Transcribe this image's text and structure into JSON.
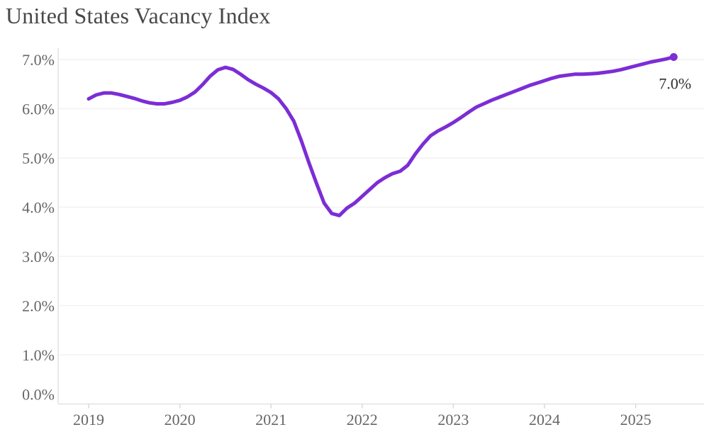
{
  "header": {
    "title": "United States Vacancy Index"
  },
  "colors": {
    "line": "#7c2dd6",
    "title": "#484848",
    "tick_label": "#666666",
    "annotation": "#2d2d2d",
    "gridline": "#f2f2f2",
    "axis_line": "#e2e2e2",
    "tick_mark": "#d9d9d9",
    "background": "#ffffff"
  },
  "chart_data": {
    "type": "line",
    "title": "United States Vacancy Index",
    "xlabel": "",
    "ylabel": "",
    "x_unit": "decimal years (monthly points, Jan 2019 - Jun 2025)",
    "ylim": [
      0.0,
      7.0
    ],
    "xlim_ticks": [
      2019,
      2025
    ],
    "grid": "horizontal",
    "legend": "none",
    "y_ticks": [
      {
        "value": 7,
        "label": "7.0%"
      },
      {
        "value": 6,
        "label": "6.0%"
      },
      {
        "value": 5,
        "label": "5.0%"
      },
      {
        "value": 4,
        "label": "4.0%"
      },
      {
        "value": 3,
        "label": "3.0%"
      },
      {
        "value": 2,
        "label": "2.0%"
      },
      {
        "value": 1,
        "label": "1.0%"
      },
      {
        "value": 0,
        "label": "0.0%"
      }
    ],
    "x_ticks": [
      {
        "value": 2019,
        "label": "2019"
      },
      {
        "value": 2020,
        "label": "2020"
      },
      {
        "value": 2021,
        "label": "2021"
      },
      {
        "value": 2022,
        "label": "2022"
      },
      {
        "value": 2023,
        "label": "2023"
      },
      {
        "value": 2024,
        "label": "2024"
      },
      {
        "value": 2025,
        "label": "2025"
      }
    ],
    "series": [
      {
        "name": "United States Vacancy Index",
        "x": [
          2019.0,
          2019.083,
          2019.167,
          2019.25,
          2019.333,
          2019.417,
          2019.5,
          2019.583,
          2019.667,
          2019.75,
          2019.833,
          2019.917,
          2020.0,
          2020.083,
          2020.167,
          2020.25,
          2020.333,
          2020.417,
          2020.5,
          2020.583,
          2020.667,
          2020.75,
          2020.833,
          2020.917,
          2021.0,
          2021.083,
          2021.167,
          2021.25,
          2021.333,
          2021.417,
          2021.5,
          2021.583,
          2021.667,
          2021.75,
          2021.833,
          2021.917,
          2022.0,
          2022.083,
          2022.167,
          2022.25,
          2022.333,
          2022.417,
          2022.5,
          2022.583,
          2022.667,
          2022.75,
          2022.833,
          2022.917,
          2023.0,
          2023.083,
          2023.167,
          2023.25,
          2023.333,
          2023.417,
          2023.5,
          2023.583,
          2023.667,
          2023.75,
          2023.833,
          2023.917,
          2024.0,
          2024.083,
          2024.167,
          2024.25,
          2024.333,
          2024.417,
          2024.5,
          2024.583,
          2024.667,
          2024.75,
          2024.833,
          2024.917,
          2025.0,
          2025.083,
          2025.167,
          2025.25,
          2025.333,
          2025.417
        ],
        "values": [
          6.2,
          6.28,
          6.32,
          6.32,
          6.29,
          6.25,
          6.21,
          6.16,
          6.12,
          6.1,
          6.1,
          6.13,
          6.17,
          6.24,
          6.34,
          6.49,
          6.66,
          6.79,
          6.84,
          6.8,
          6.7,
          6.59,
          6.5,
          6.42,
          6.33,
          6.2,
          6.0,
          5.75,
          5.35,
          4.9,
          4.48,
          4.08,
          3.87,
          3.83,
          3.98,
          4.08,
          4.22,
          4.36,
          4.5,
          4.6,
          4.68,
          4.73,
          4.85,
          5.08,
          5.28,
          5.45,
          5.55,
          5.63,
          5.72,
          5.82,
          5.93,
          6.03,
          6.1,
          6.17,
          6.23,
          6.29,
          6.35,
          6.41,
          6.47,
          6.52,
          6.57,
          6.62,
          6.66,
          6.68,
          6.7,
          6.7,
          6.71,
          6.72,
          6.74,
          6.76,
          6.79,
          6.83,
          6.87,
          6.91,
          6.95,
          6.98,
          7.01,
          7.05
        ]
      }
    ],
    "end_point": {
      "x": 2025.417,
      "value": 7.05,
      "label": "7.0%",
      "marker": "dot"
    }
  }
}
